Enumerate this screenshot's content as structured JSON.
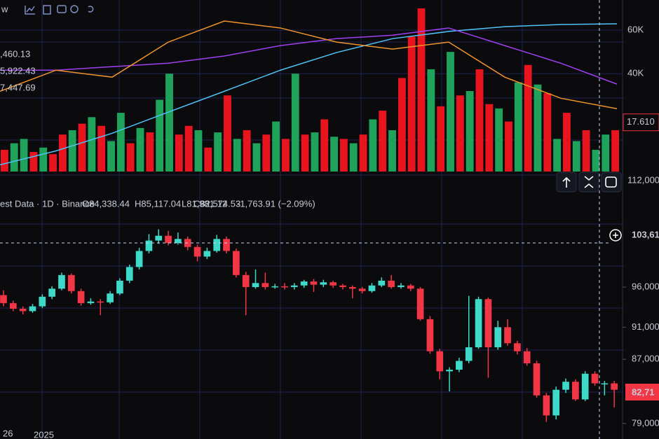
{
  "toolbar": {
    "label": "w"
  },
  "top_panel": {
    "indicator_values": [
      ",460.13",
      "5,922.43",
      "7,447.69"
    ],
    "ylim": [
      -5,
      70
    ],
    "yticks": [
      {
        "value": 60,
        "label": "60K"
      },
      {
        "value": 40,
        "label": "40K"
      }
    ],
    "last_volume": {
      "value": 17.61,
      "label": "17.610"
    },
    "volume": [
      5,
      8,
      10,
      4,
      6,
      3,
      12,
      14,
      17,
      20,
      16,
      9,
      22,
      8,
      15,
      13,
      28,
      40,
      12,
      16,
      14,
      6,
      13,
      30,
      10,
      14,
      8,
      12,
      18,
      10,
      40,
      12,
      13,
      19,
      11,
      10,
      8,
      12,
      19,
      23,
      14,
      38,
      57,
      70,
      42,
      25,
      50,
      30,
      32,
      42,
      26,
      24,
      18,
      36,
      44,
      35,
      31,
      10,
      22,
      9,
      14,
      5,
      12,
      14
    ],
    "volume_up": [
      false,
      true,
      true,
      false,
      true,
      false,
      false,
      true,
      false,
      true,
      false,
      true,
      true,
      false,
      true,
      false,
      true,
      true,
      false,
      false,
      true,
      false,
      true,
      false,
      true,
      false,
      true,
      false,
      true,
      false,
      true,
      false,
      true,
      false,
      true,
      false,
      true,
      false,
      true,
      false,
      true,
      false,
      false,
      false,
      true,
      false,
      true,
      false,
      true,
      false,
      false,
      true,
      false,
      true,
      false,
      true,
      false,
      true,
      false,
      true,
      false,
      true,
      true,
      false
    ],
    "ma_lines": [
      {
        "color": "#4fc3f7",
        "values": [
          -1.9,
          4.5,
          12.6,
          22.3,
          31.9,
          41.6,
          49.7,
          56.1,
          59.4,
          61.6,
          62.6,
          62.9
        ]
      },
      {
        "color": "#a040f0",
        "values": [
          41.6,
          41.6,
          43.2,
          44.8,
          48.1,
          52.9,
          56.1,
          57.7,
          61,
          52.9,
          44.8,
          35.2
        ]
      },
      {
        "color": "#f0952a",
        "values": [
          31.9,
          41.6,
          38.4,
          54.5,
          64.2,
          61,
          54.5,
          51.3,
          54.5,
          38.4,
          28.7,
          23.9
        ]
      }
    ],
    "scale_label": "112,000"
  },
  "legend": {
    "source": "est Data · 1D · Binance",
    "open": "O84,338.44",
    "high": "H85,117.04",
    "low": "L81,981.12",
    "close": "C82,574.53",
    "change": "-1,763.91 (−2.09%)"
  },
  "price_panel": {
    "ylim": [
      77500,
      107000
    ],
    "yticks": [
      {
        "value": 96000,
        "label": "96,000"
      },
      {
        "value": 91000,
        "label": "91,000"
      },
      {
        "value": 87000,
        "label": "87,000"
      },
      {
        "value": 79000,
        "label": "79,000"
      }
    ],
    "crosshair_price": "103,61",
    "last_price": "82,71",
    "candles": [
      [
        95000,
        95600,
        93600,
        94000
      ],
      [
        94000,
        94300,
        93000,
        93300
      ],
      [
        93300,
        93600,
        92600,
        93000
      ],
      [
        93000,
        93900,
        92800,
        93600
      ],
      [
        93600,
        95100,
        93400,
        94800
      ],
      [
        94800,
        96100,
        94500,
        95800
      ],
      [
        95800,
        97800,
        95600,
        97500
      ],
      [
        97500,
        97700,
        95200,
        95500
      ],
      [
        95500,
        95800,
        93700,
        94000
      ],
      [
        94000,
        94600,
        93800,
        94200
      ],
      [
        94200,
        94500,
        92500,
        94100
      ],
      [
        94100,
        95500,
        93900,
        95200
      ],
      [
        95200,
        97100,
        95000,
        96800
      ],
      [
        96800,
        98800,
        96500,
        98500
      ],
      [
        98500,
        100900,
        98200,
        100500
      ],
      [
        100500,
        102600,
        100200,
        101800
      ],
      [
        101800,
        103200,
        101400,
        102400
      ],
      [
        102400,
        103000,
        101200,
        101500
      ],
      [
        101500,
        102800,
        101300,
        102000
      ],
      [
        102000,
        102300,
        100600,
        101000
      ],
      [
        101000,
        101300,
        99200,
        99800
      ],
      [
        99800,
        100900,
        99500,
        100500
      ],
      [
        100500,
        102500,
        100300,
        102000
      ],
      [
        102000,
        102300,
        100200,
        100500
      ],
      [
        100500,
        100800,
        97200,
        97500
      ],
      [
        97500,
        97900,
        92500,
        96000
      ],
      [
        96000,
        98200,
        95800,
        96500
      ],
      [
        96500,
        97800,
        95700,
        96000
      ],
      [
        96000,
        96400,
        95800,
        96100
      ],
      [
        96100,
        96500,
        95700,
        96000
      ],
      [
        96000,
        96500,
        95700,
        96200
      ],
      [
        96200,
        96900,
        95900,
        96700
      ],
      [
        96700,
        97000,
        95400,
        96300
      ],
      [
        96300,
        96900,
        96000,
        96600
      ],
      [
        96600,
        96800,
        95900,
        96200
      ],
      [
        96200,
        96400,
        95700,
        96000
      ],
      [
        96000,
        96200,
        94600,
        95800
      ],
      [
        95800,
        96000,
        95200,
        95500
      ],
      [
        95500,
        96500,
        95300,
        96200
      ],
      [
        96200,
        97200,
        96000,
        96800
      ],
      [
        96800,
        97500,
        95800,
        96000
      ],
      [
        96000,
        96500,
        95800,
        96200
      ],
      [
        96200,
        96400,
        95500,
        95800
      ],
      [
        95800,
        96000,
        91800,
        92000
      ],
      [
        92000,
        92400,
        87700,
        88000
      ],
      [
        88000,
        88300,
        84500,
        85500
      ],
      [
        85500,
        86000,
        83000,
        85700
      ],
      [
        85700,
        87200,
        85400,
        86800
      ],
      [
        86800,
        94900,
        86500,
        88500
      ],
      [
        88500,
        94800,
        88300,
        94500
      ],
      [
        94500,
        94700,
        84700,
        88500
      ],
      [
        88500,
        91800,
        88200,
        91000
      ],
      [
        91000,
        92000,
        88700,
        89000
      ],
      [
        89000,
        89300,
        87600,
        88000
      ],
      [
        88000,
        88400,
        86200,
        86500
      ],
      [
        86500,
        86800,
        82200,
        82500
      ],
      [
        82500,
        82800,
        79200,
        80000
      ],
      [
        80000,
        83600,
        79500,
        83200
      ],
      [
        83200,
        84600,
        82800,
        84200
      ],
      [
        84200,
        84500,
        81800,
        82000
      ],
      [
        82000,
        85500,
        81800,
        85200
      ],
      [
        85200,
        85500,
        83700,
        84000
      ],
      [
        84000,
        84300,
        82500,
        84000
      ],
      [
        84000,
        84300,
        81000,
        83200
      ]
    ]
  },
  "x_labels": [
    "26",
    "2025"
  ]
}
